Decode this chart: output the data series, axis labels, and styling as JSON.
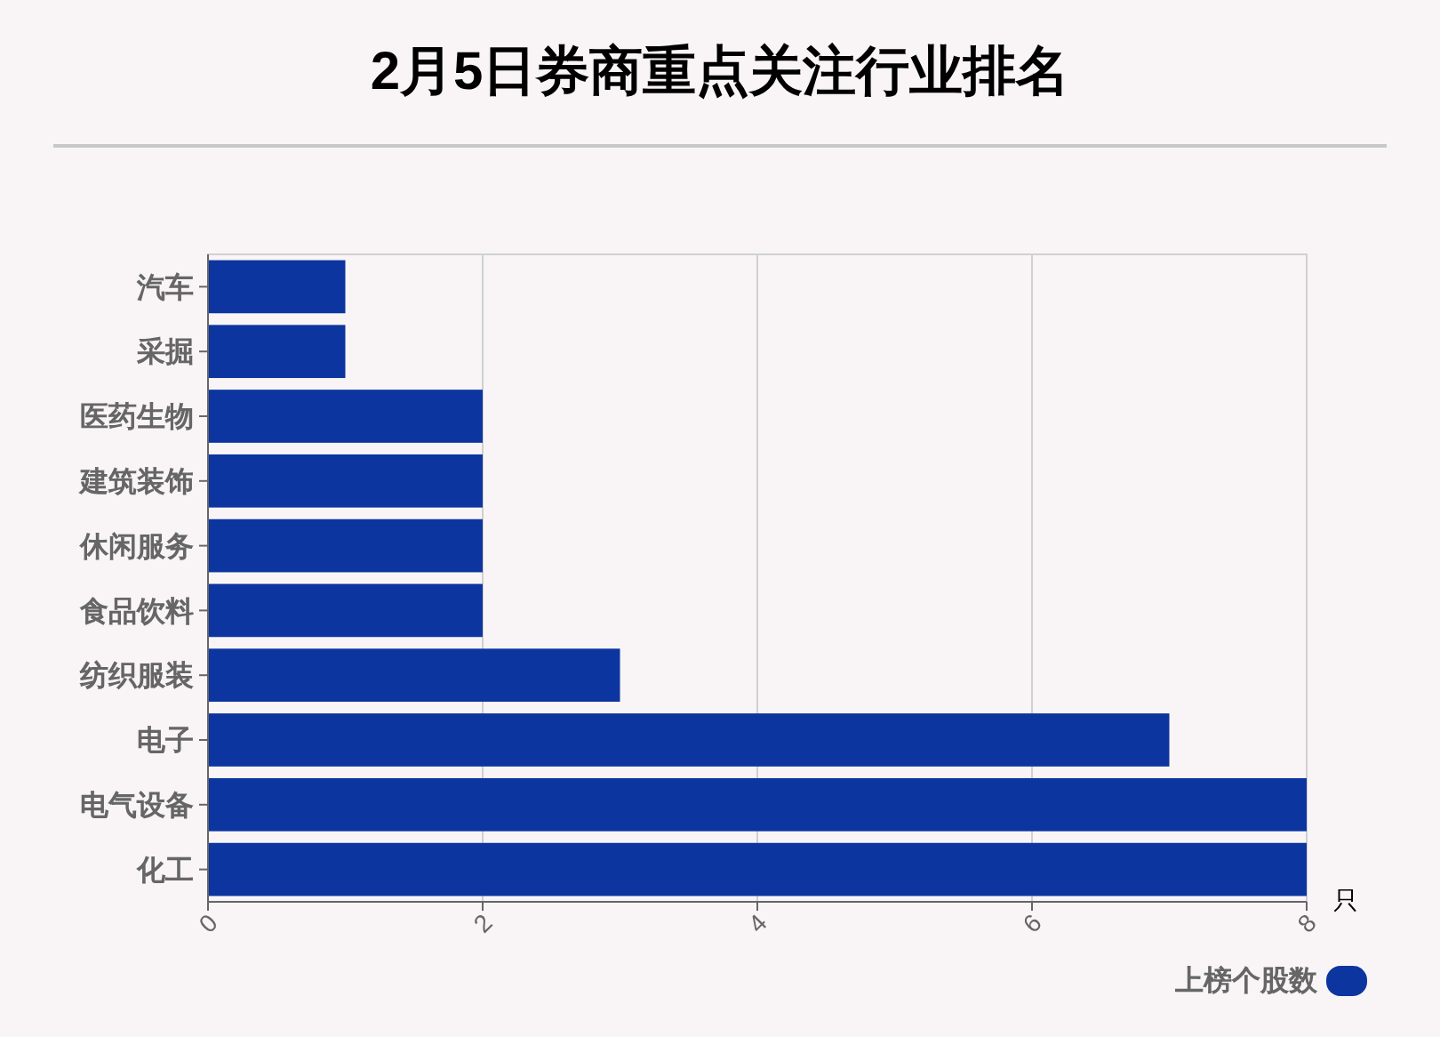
{
  "chart_data": {
    "type": "bar",
    "title": "2月5日券商重点关注行业排名",
    "orientation": "horizontal",
    "categories": [
      "汽车",
      "采掘",
      "医药生物",
      "建筑装饰",
      "休闲服务",
      "食品饮料",
      "纺织服装",
      "电子",
      "电气设备",
      "化工"
    ],
    "series": [
      {
        "name": "上榜个股数",
        "color": "#0c35a0",
        "values": [
          1,
          1,
          2,
          2,
          2,
          2,
          3,
          7,
          8,
          8
        ]
      }
    ],
    "xlim": [
      0,
      8
    ],
    "xticks": [
      0,
      2,
      4,
      6,
      8
    ],
    "xlabel": "只",
    "grid": "x",
    "legend": "bottom right"
  }
}
